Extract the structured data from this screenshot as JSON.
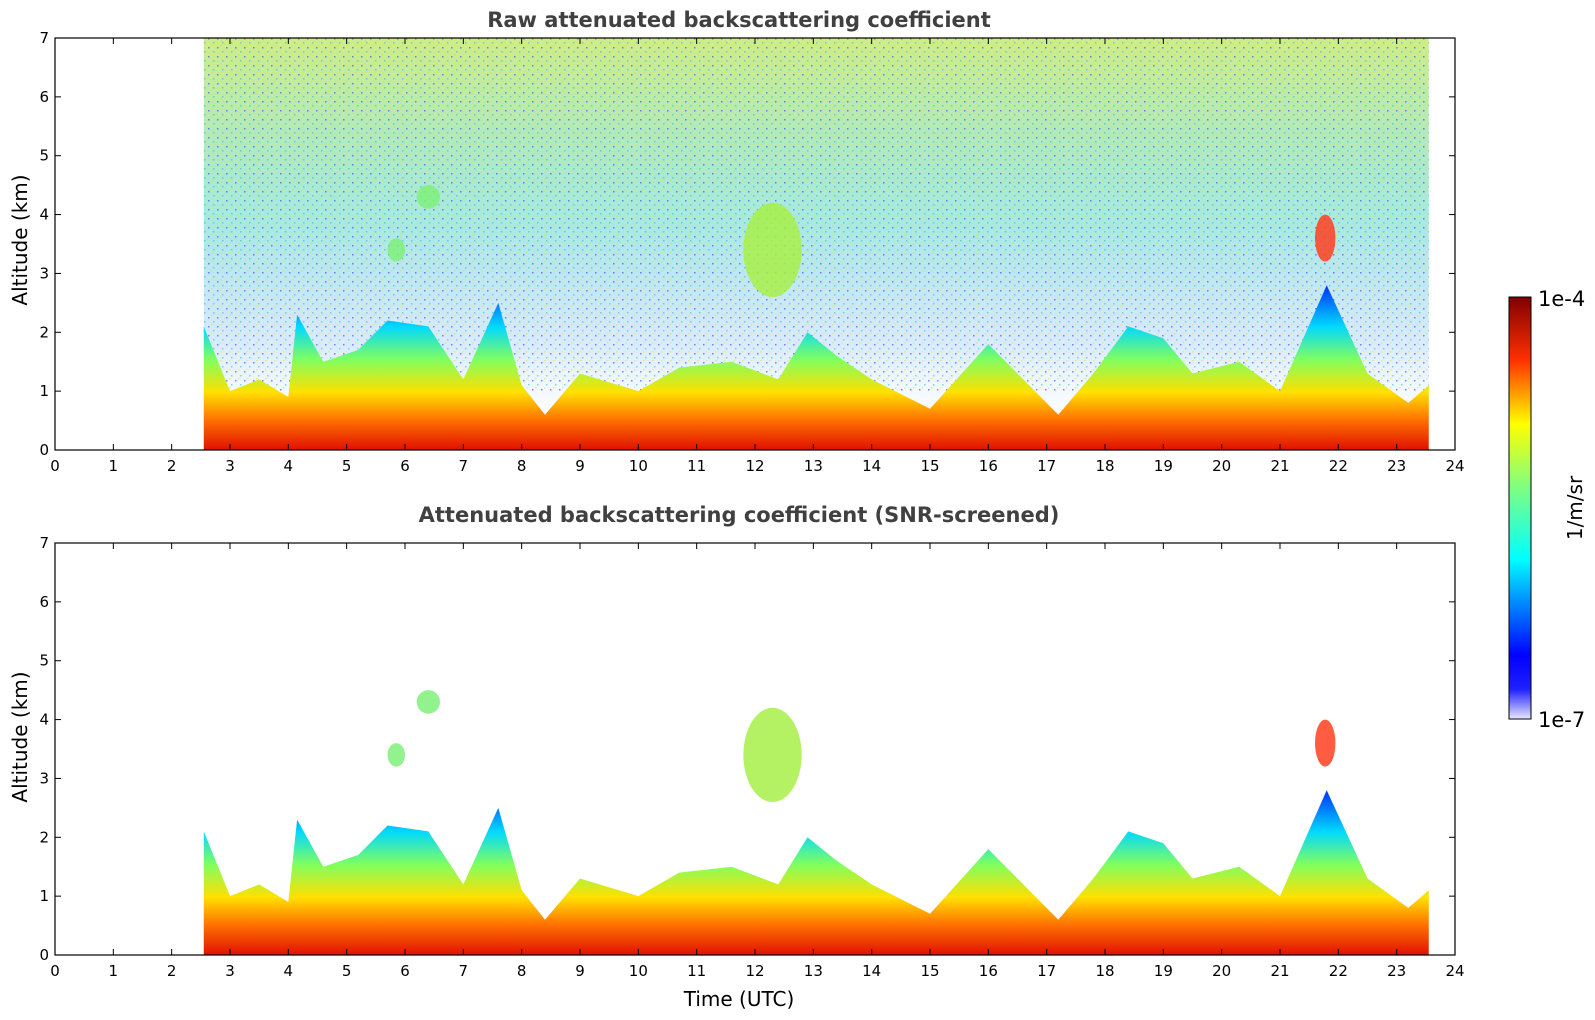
{
  "chart_data": [
    {
      "type": "heatmap",
      "title": "Raw attenuated backscattering coefficient",
      "xlabel": "",
      "ylabel": "Altitude (km)",
      "xlim": [
        0,
        24
      ],
      "ylim": [
        0,
        7
      ],
      "xticks": [
        "0",
        "1",
        "2",
        "3",
        "4",
        "5",
        "6",
        "7",
        "8",
        "9",
        "10",
        "11",
        "12",
        "13",
        "14",
        "15",
        "16",
        "17",
        "18",
        "19",
        "20",
        "21",
        "22",
        "23",
        "24"
      ],
      "yticks": [
        "0",
        "1",
        "2",
        "3",
        "4",
        "5",
        "6",
        "7"
      ],
      "data_start_hour": 2.55,
      "data_end_hour": 23.55,
      "screened": false,
      "boundary_layer_top_km": [
        [
          2.55,
          2.1
        ],
        [
          3.0,
          1.0
        ],
        [
          3.5,
          1.2
        ],
        [
          4.0,
          0.9
        ],
        [
          4.15,
          2.3
        ],
        [
          4.6,
          1.5
        ],
        [
          5.2,
          1.7
        ],
        [
          5.7,
          2.2
        ],
        [
          6.4,
          2.1
        ],
        [
          7.0,
          1.2
        ],
        [
          7.6,
          2.5
        ],
        [
          8.0,
          1.1
        ],
        [
          8.4,
          0.6
        ],
        [
          9.0,
          1.3
        ],
        [
          10.0,
          1.0
        ],
        [
          10.7,
          1.4
        ],
        [
          11.6,
          1.5
        ],
        [
          12.4,
          1.2
        ],
        [
          12.9,
          2.0
        ],
        [
          13.4,
          1.6
        ],
        [
          14.0,
          1.2
        ],
        [
          15.0,
          0.7
        ],
        [
          16.0,
          1.8
        ],
        [
          16.6,
          1.2
        ],
        [
          17.2,
          0.6
        ],
        [
          17.8,
          1.3
        ],
        [
          18.4,
          2.1
        ],
        [
          19.0,
          1.9
        ],
        [
          19.5,
          1.3
        ],
        [
          20.3,
          1.5
        ],
        [
          21.0,
          1.0
        ],
        [
          21.8,
          2.8
        ],
        [
          22.5,
          1.3
        ],
        [
          23.2,
          0.8
        ],
        [
          23.55,
          1.1
        ]
      ],
      "elevated_layers": [
        {
          "t0": 11.8,
          "t1": 12.8,
          "z0": 2.6,
          "z1": 4.2,
          "level": "medium"
        },
        {
          "t0": 21.6,
          "t1": 21.95,
          "z0": 3.2,
          "z1": 4.0,
          "level": "high"
        },
        {
          "t0": 6.2,
          "t1": 6.6,
          "z0": 4.1,
          "z1": 4.5,
          "level": "low"
        },
        {
          "t0": 5.7,
          "t1": 6.0,
          "z0": 3.2,
          "z1": 3.6,
          "level": "low"
        }
      ]
    },
    {
      "type": "heatmap",
      "title": "Attenuated backscattering coefficient (SNR-screened)",
      "xlabel": "Time (UTC)",
      "ylabel": "Altitude (km)",
      "xlim": [
        0,
        24
      ],
      "ylim": [
        0,
        7
      ],
      "xticks": [
        "0",
        "1",
        "2",
        "3",
        "4",
        "5",
        "6",
        "7",
        "8",
        "9",
        "10",
        "11",
        "12",
        "13",
        "14",
        "15",
        "16",
        "17",
        "18",
        "19",
        "20",
        "21",
        "22",
        "23",
        "24"
      ],
      "yticks": [
        "0",
        "1",
        "2",
        "3",
        "4",
        "5",
        "6",
        "7"
      ],
      "data_start_hour": 2.55,
      "data_end_hour": 23.55,
      "screened": true
    }
  ],
  "colorbar": {
    "label": "1/m/sr",
    "max_label": "1e-4",
    "min_label": "1e-7",
    "colors": [
      "#e8e8ff",
      "#0000ff",
      "#00ffff",
      "#ffff00",
      "#ff0000",
      "#800000"
    ]
  }
}
